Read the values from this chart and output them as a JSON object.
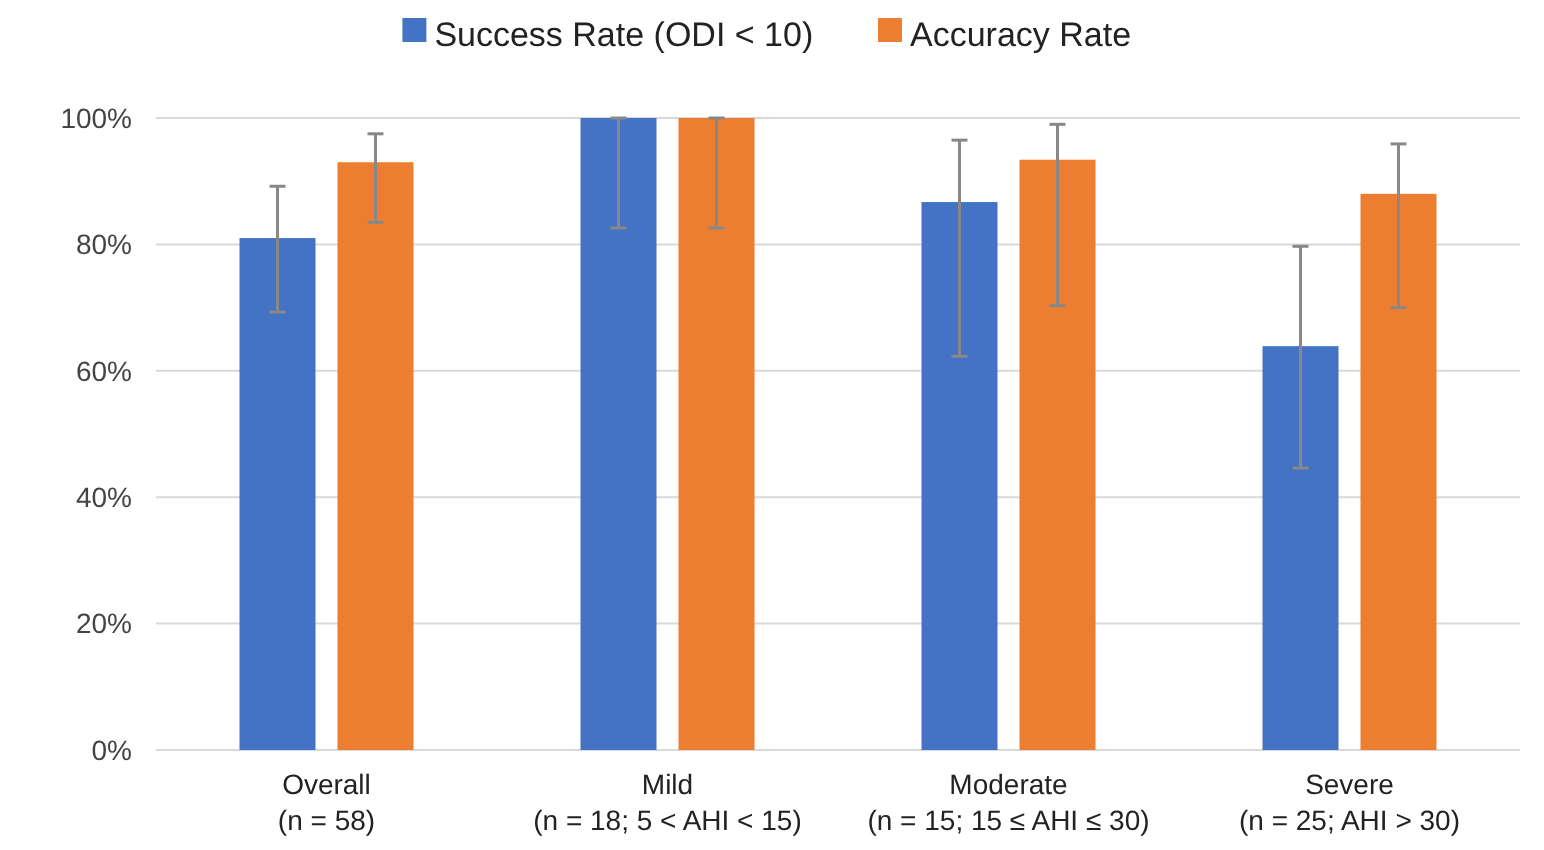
{
  "chart_data": {
    "type": "bar",
    "categories": [
      "Overall\n(n = 58)",
      "Mild\n(n = 18; 5 < AHI < 15)",
      "Moderate\n(n = 15; 15 ≤ AHI ≤ 30)",
      "Severe\n(n = 25; AHI > 30)"
    ],
    "series": [
      {
        "name": "Success Rate (ODI < 10)",
        "color": "#4472c4",
        "values": [
          81,
          100,
          86.7,
          63.9
        ],
        "errors": [
          [
            69.3,
            89.2
          ],
          [
            82.6,
            100
          ],
          [
            62.3,
            96.5
          ],
          [
            44.6,
            79.7
          ]
        ]
      },
      {
        "name": "Accuracy Rate",
        "color": "#ed7d31",
        "values": [
          93,
          100,
          93.4,
          88
        ],
        "errors": [
          [
            83.5,
            97.5
          ],
          [
            82.6,
            100
          ],
          [
            70.3,
            99
          ],
          [
            70,
            95.9
          ]
        ]
      }
    ],
    "ylim": [
      0,
      100
    ],
    "yticks": [
      {
        "value": 0,
        "label": "0%"
      },
      {
        "value": 20,
        "label": "20%"
      },
      {
        "value": 40,
        "label": "40%"
      },
      {
        "value": 60,
        "label": "60%"
      },
      {
        "value": 80,
        "label": "80%"
      },
      {
        "value": 100,
        "label": "100%"
      }
    ],
    "grid": "y",
    "legend": "top"
  }
}
